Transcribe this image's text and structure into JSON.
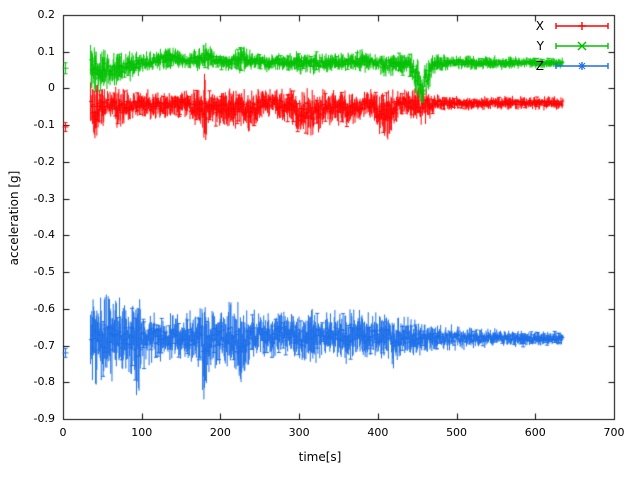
{
  "figure": {
    "title": "",
    "xlabel": "time[s]",
    "ylabel": "acceleration [g]"
  },
  "chart_data": {
    "type": "line",
    "subtype": "errorbars-scatter",
    "title": "",
    "xlabel": "time[s]",
    "ylabel": "acceleration [g]",
    "xlim": [
      0,
      700
    ],
    "ylim": [
      -0.9,
      0.2
    ],
    "xtick_labels": [
      "0",
      "100",
      "200",
      "300",
      "400",
      "500",
      "600",
      "700"
    ],
    "ytick_labels": [
      "-0.9",
      "-0.8",
      "-0.7",
      "-0.6",
      "-0.5",
      "-0.4",
      "-0.3",
      "-0.2",
      "-0.1",
      "0",
      "0.1",
      "0.2"
    ],
    "grid": false,
    "legend_position": "top-right",
    "background": "#ffffff",
    "axis_color": "#000000",
    "series": [
      {
        "name": "X",
        "color": "#ff0000",
        "description": "acceleration X axis, mean about -0.05 g from t=35s to t=635s with noise band, large scatter early and a downward spike to about -0.17 g near t=180s, noise narrows after t=470s",
        "initial_point": {
          "x": 2,
          "y": -0.105,
          "err": 0.012
        },
        "keypoints": [
          [
            35,
            -0.05,
            0.06
          ],
          [
            40,
            -0.07,
            0.07
          ],
          [
            50,
            -0.05,
            0.05
          ],
          [
            60,
            -0.04,
            0.03
          ],
          [
            70,
            -0.06,
            0.05
          ],
          [
            80,
            -0.05,
            0.04
          ],
          [
            95,
            -0.04,
            0.03
          ],
          [
            110,
            -0.05,
            0.04
          ],
          [
            130,
            -0.05,
            0.03
          ],
          [
            150,
            -0.04,
            0.03
          ],
          [
            165,
            -0.05,
            0.04
          ],
          [
            178,
            -0.06,
            0.04
          ],
          [
            180,
            -0.08,
            0.1
          ],
          [
            183,
            -0.06,
            0.04
          ],
          [
            200,
            -0.05,
            0.04
          ],
          [
            215,
            -0.06,
            0.05
          ],
          [
            225,
            -0.05,
            0.04
          ],
          [
            240,
            -0.06,
            0.05
          ],
          [
            255,
            -0.04,
            0.03
          ],
          [
            270,
            -0.04,
            0.03
          ],
          [
            285,
            -0.05,
            0.04
          ],
          [
            300,
            -0.07,
            0.05
          ],
          [
            310,
            -0.06,
            0.05
          ],
          [
            320,
            -0.07,
            0.05
          ],
          [
            335,
            -0.05,
            0.04
          ],
          [
            350,
            -0.05,
            0.04
          ],
          [
            365,
            -0.06,
            0.04
          ],
          [
            375,
            -0.05,
            0.03
          ],
          [
            390,
            -0.04,
            0.03
          ],
          [
            400,
            -0.06,
            0.05
          ],
          [
            410,
            -0.07,
            0.06
          ],
          [
            420,
            -0.05,
            0.04
          ],
          [
            435,
            -0.04,
            0.03
          ],
          [
            450,
            -0.045,
            0.04
          ],
          [
            460,
            -0.05,
            0.05
          ],
          [
            470,
            -0.04,
            0.02
          ],
          [
            500,
            -0.04,
            0.015
          ],
          [
            550,
            -0.04,
            0.015
          ],
          [
            600,
            -0.04,
            0.015
          ],
          [
            635,
            -0.04,
            0.015
          ]
        ]
      },
      {
        "name": "Y",
        "color": "#00c000",
        "description": "acceleration Y axis, mean rises from about 0.05 g at t=35s to about 0.075 g, bumps near t=140s and t=230s, sharp dip to about -0.01 g near t=455s, then steady near 0.07 g until t=635s",
        "initial_point": {
          "x": 2,
          "y": 0.055,
          "err": 0.015
        },
        "keypoints": [
          [
            35,
            0.06,
            0.055
          ],
          [
            45,
            0.05,
            0.06
          ],
          [
            55,
            0.055,
            0.05
          ],
          [
            65,
            0.05,
            0.04
          ],
          [
            75,
            0.055,
            0.035
          ],
          [
            85,
            0.06,
            0.03
          ],
          [
            100,
            0.07,
            0.025
          ],
          [
            115,
            0.075,
            0.02
          ],
          [
            130,
            0.08,
            0.025
          ],
          [
            140,
            0.085,
            0.025
          ],
          [
            150,
            0.08,
            0.02
          ],
          [
            160,
            0.075,
            0.02
          ],
          [
            175,
            0.08,
            0.03
          ],
          [
            185,
            0.09,
            0.03
          ],
          [
            195,
            0.075,
            0.02
          ],
          [
            210,
            0.07,
            0.02
          ],
          [
            225,
            0.08,
            0.03
          ],
          [
            230,
            0.085,
            0.035
          ],
          [
            240,
            0.075,
            0.02
          ],
          [
            260,
            0.07,
            0.02
          ],
          [
            280,
            0.072,
            0.02
          ],
          [
            300,
            0.07,
            0.025
          ],
          [
            320,
            0.068,
            0.025
          ],
          [
            340,
            0.07,
            0.02
          ],
          [
            360,
            0.072,
            0.02
          ],
          [
            380,
            0.075,
            0.025
          ],
          [
            395,
            0.07,
            0.02
          ],
          [
            410,
            0.065,
            0.03
          ],
          [
            425,
            0.07,
            0.025
          ],
          [
            440,
            0.065,
            0.03
          ],
          [
            448,
            0.04,
            0.05
          ],
          [
            455,
            -0.005,
            0.035
          ],
          [
            462,
            0.03,
            0.05
          ],
          [
            468,
            0.06,
            0.03
          ],
          [
            475,
            0.068,
            0.02
          ],
          [
            500,
            0.07,
            0.015
          ],
          [
            550,
            0.07,
            0.015
          ],
          [
            600,
            0.07,
            0.012
          ],
          [
            635,
            0.07,
            0.012
          ]
        ]
      },
      {
        "name": "Z",
        "color": "#1c6ee8",
        "description": "acceleration Z axis, mean about -0.68 g from t=35s to t=635s, very wide noise band early (down to -0.85 g near t=95s and t=180s), band gradually narrows toward the end",
        "initial_point": {
          "x": 2,
          "y": -0.72,
          "err": 0.012
        },
        "keypoints": [
          [
            35,
            -0.68,
            0.09
          ],
          [
            45,
            -0.69,
            0.1
          ],
          [
            55,
            -0.68,
            0.1
          ],
          [
            65,
            -0.68,
            0.09
          ],
          [
            75,
            -0.68,
            0.08
          ],
          [
            85,
            -0.68,
            0.08
          ],
          [
            95,
            -0.7,
            0.12
          ],
          [
            100,
            -0.68,
            0.07
          ],
          [
            110,
            -0.675,
            0.06
          ],
          [
            125,
            -0.68,
            0.05
          ],
          [
            140,
            -0.675,
            0.05
          ],
          [
            155,
            -0.68,
            0.05
          ],
          [
            170,
            -0.675,
            0.06
          ],
          [
            180,
            -0.7,
            0.13
          ],
          [
            185,
            -0.68,
            0.07
          ],
          [
            200,
            -0.675,
            0.07
          ],
          [
            215,
            -0.68,
            0.08
          ],
          [
            228,
            -0.7,
            0.09
          ],
          [
            235,
            -0.675,
            0.06
          ],
          [
            250,
            -0.67,
            0.05
          ],
          [
            265,
            -0.675,
            0.05
          ],
          [
            280,
            -0.67,
            0.05
          ],
          [
            295,
            -0.675,
            0.05
          ],
          [
            310,
            -0.68,
            0.06
          ],
          [
            315,
            -0.67,
            0.07
          ],
          [
            330,
            -0.675,
            0.05
          ],
          [
            345,
            -0.67,
            0.05
          ],
          [
            360,
            -0.675,
            0.06
          ],
          [
            370,
            -0.67,
            0.05
          ],
          [
            385,
            -0.675,
            0.05
          ],
          [
            395,
            -0.68,
            0.06
          ],
          [
            410,
            -0.675,
            0.05
          ],
          [
            420,
            -0.68,
            0.06
          ],
          [
            430,
            -0.675,
            0.05
          ],
          [
            445,
            -0.68,
            0.04
          ],
          [
            460,
            -0.68,
            0.035
          ],
          [
            480,
            -0.68,
            0.03
          ],
          [
            510,
            -0.68,
            0.025
          ],
          [
            550,
            -0.68,
            0.02
          ],
          [
            590,
            -0.682,
            0.018
          ],
          [
            635,
            -0.68,
            0.015
          ]
        ]
      }
    ]
  }
}
